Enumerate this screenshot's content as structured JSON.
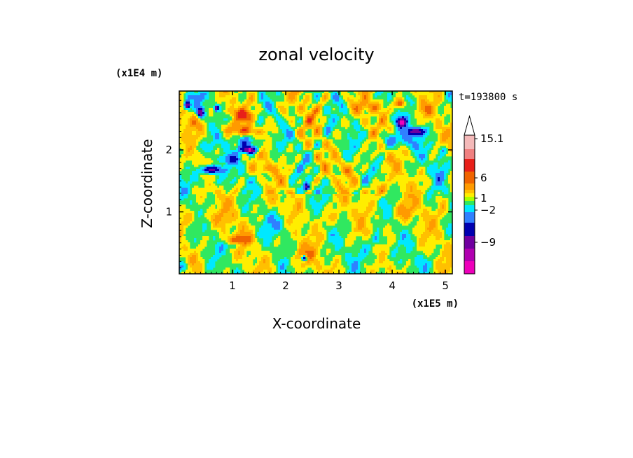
{
  "chart_data": {
    "type": "heatmap",
    "title": "zonal velocity",
    "xlabel": "X-coordinate",
    "ylabel": "Z-coordinate",
    "x_scale_note": "(x1E5 m)",
    "y_scale_note": "(x1E4 m)",
    "time_label": "t=193800 s",
    "xlim": [
      0,
      5.13
    ],
    "ylim": [
      0,
      2.95
    ],
    "x_ticks": [
      "1",
      "2",
      "3",
      "4",
      "5"
    ],
    "y_ticks": [
      "1",
      "2"
    ],
    "colorbar": {
      "extend": "max",
      "tick_labels": [
        "15.1",
        "6",
        "1",
        "−2",
        "−9"
      ],
      "level_colors_top_to_bottom": [
        "#f4b9b9",
        "#f08080",
        "#e8201a",
        "#f06400",
        "#ff9a00",
        "#ffc000",
        "#ffee00",
        "#aaff00",
        "#30e860",
        "#00e8ff",
        "#3080ff",
        "#0000b0",
        "#7000a0",
        "#b000b0",
        "#ee00bb"
      ]
    },
    "colors": {
      "blue": "#1010c8",
      "cyan": "#00e8ff",
      "green": "#30e860",
      "yellow": "#ffee00",
      "light_orange": "#ffc000",
      "orange": "#ff9a00",
      "dark_orange": "#f06400",
      "red": "#e8201a",
      "magenta": "#ee00bb"
    },
    "features": [
      {
        "x": 0.15,
        "z": 2.72,
        "rx": 0.07,
        "rz": 0.08,
        "v": -12
      },
      {
        "x": 0.4,
        "z": 2.6,
        "rx": 0.08,
        "rz": 0.1,
        "v": -9
      },
      {
        "x": 0.7,
        "z": 2.68,
        "rx": 0.06,
        "rz": 0.06,
        "v": -9
      },
      {
        "x": 0.25,
        "z": 2.45,
        "rx": 0.25,
        "rz": 0.16,
        "v": 4
      },
      {
        "x": 0.95,
        "z": 2.35,
        "rx": 0.3,
        "rz": 0.13,
        "v": 4
      },
      {
        "x": 0.5,
        "z": 2.05,
        "rx": 0.32,
        "rz": 0.14,
        "v": -1
      },
      {
        "x": 1.33,
        "z": 2.12,
        "rx": 0.35,
        "rz": 0.15,
        "v": -3
      },
      {
        "x": 1.3,
        "z": 2.3,
        "rx": 0.3,
        "rz": 0.08,
        "v": 5
      },
      {
        "x": 1.33,
        "z": 2.0,
        "rx": 0.18,
        "rz": 0.07,
        "v": -10
      },
      {
        "x": 0.6,
        "z": 1.68,
        "rx": 0.25,
        "rz": 0.09,
        "v": -10
      },
      {
        "x": 0.9,
        "z": 1.85,
        "rx": 0.3,
        "rz": 0.1,
        "v": -3
      },
      {
        "x": 0.6,
        "z": 1.5,
        "rx": 0.45,
        "rz": 0.12,
        "v": -1
      },
      {
        "x": 1.6,
        "z": 1.7,
        "rx": 0.25,
        "rz": 0.08,
        "v": 4
      },
      {
        "x": 1.0,
        "z": 2.62,
        "rx": 0.2,
        "rz": 0.08,
        "v": 4
      },
      {
        "x": 1.25,
        "z": 2.55,
        "rx": 0.2,
        "rz": 0.1,
        "v": 6
      },
      {
        "x": 0.3,
        "z": 2.85,
        "rx": 0.35,
        "rz": 0.1,
        "v": -1
      },
      {
        "x": 2.6,
        "z": 2.55,
        "rx": 0.6,
        "rz": 0.3,
        "v": 2
      },
      {
        "x": 2.4,
        "z": 1.4,
        "rx": 0.07,
        "rz": 0.06,
        "v": -9
      },
      {
        "x": 2.8,
        "z": 2.3,
        "rx": 0.12,
        "rz": 0.4,
        "v": -1
      },
      {
        "x": 3.6,
        "z": 2.7,
        "rx": 0.35,
        "rz": 0.12,
        "v": 4
      },
      {
        "x": 4.18,
        "z": 2.45,
        "rx": 0.12,
        "rz": 0.09,
        "v": -11
      },
      {
        "x": 4.45,
        "z": 2.3,
        "rx": 0.2,
        "rz": 0.08,
        "v": -10
      },
      {
        "x": 4.1,
        "z": 2.15,
        "rx": 0.45,
        "rz": 0.15,
        "v": -3
      },
      {
        "x": 4.15,
        "z": 2.75,
        "rx": 0.1,
        "rz": 0.08,
        "v": 8
      },
      {
        "x": 4.6,
        "z": 2.65,
        "rx": 0.3,
        "rz": 0.12,
        "v": 3
      },
      {
        "x": 3.7,
        "z": 1.35,
        "rx": 0.25,
        "rz": 0.15,
        "v": 5
      },
      {
        "x": 4.2,
        "z": 1.0,
        "rx": 0.3,
        "rz": 0.2,
        "v": 4
      },
      {
        "x": 3.6,
        "z": 0.35,
        "rx": 0.35,
        "rz": 0.3,
        "v": -1
      },
      {
        "x": 3.7,
        "z": 0.55,
        "rx": 0.1,
        "rz": 0.1,
        "v": -3
      },
      {
        "x": 4.5,
        "z": 0.2,
        "rx": 0.3,
        "rz": 0.15,
        "v": 0
      },
      {
        "x": 0.5,
        "z": 0.9,
        "rx": 0.7,
        "rz": 0.18,
        "v": 3
      },
      {
        "x": 0.4,
        "z": 0.5,
        "rx": 0.45,
        "rz": 0.15,
        "v": 1
      },
      {
        "x": 1.1,
        "z": 0.55,
        "rx": 0.35,
        "rz": 0.12,
        "v": 5
      },
      {
        "x": 1.0,
        "z": 0.45,
        "rx": 0.18,
        "rz": 0.06,
        "v": -3
      },
      {
        "x": 2.3,
        "z": 0.3,
        "rx": 0.3,
        "rz": 0.2,
        "v": 4
      },
      {
        "x": 2.35,
        "z": 0.25,
        "rx": 0.06,
        "rz": 0.06,
        "v": -10
      },
      {
        "x": 1.9,
        "z": 0.8,
        "rx": 0.35,
        "rz": 0.2,
        "v": -1
      },
      {
        "x": 2.8,
        "z": 0.9,
        "rx": 0.35,
        "rz": 0.2,
        "v": 3
      },
      {
        "x": 4.9,
        "z": 1.7,
        "rx": 0.2,
        "rz": 0.3,
        "v": -1
      },
      {
        "x": 4.95,
        "z": 1.1,
        "rx": 0.15,
        "rz": 0.25,
        "v": 3
      },
      {
        "x": 0.05,
        "z": 0.1,
        "rx": 0.15,
        "rz": 0.1,
        "v": -3
      },
      {
        "x": 1.6,
        "z": 1.15,
        "rx": 0.4,
        "rz": 0.15,
        "v": 2
      },
      {
        "x": 3.2,
        "z": 1.7,
        "rx": 0.3,
        "rz": 0.15,
        "v": 3
      },
      {
        "x": 4.95,
        "z": 2.0,
        "rx": 0.1,
        "rz": 0.12,
        "v": -2
      }
    ]
  }
}
